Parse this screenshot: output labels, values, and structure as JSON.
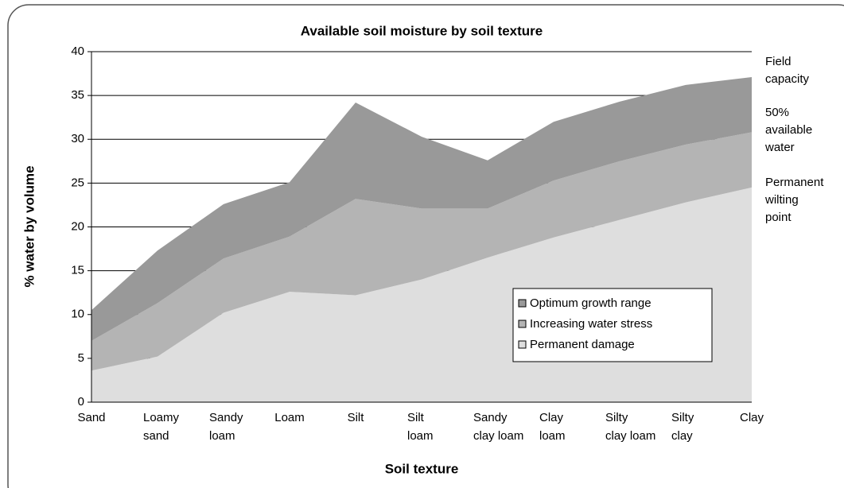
{
  "chart_data": {
    "type": "stacked_area",
    "title": "Available soil moisture by soil texture",
    "xlabel": "Soil texture",
    "ylabel": "% water by volume",
    "categories": [
      "Sand",
      "Loamy\nsand",
      "Sandy\nloam",
      "Loam",
      "Silt",
      "Silt\nloam",
      "Sandy\nclay loam",
      "Clay\nloam",
      "Silty\nclay loam",
      "Silty\nclay",
      "Clay"
    ],
    "series": [
      {
        "name": "Optimum growth range",
        "color": "#999999",
        "values": [
          3.5,
          6.0,
          6.2,
          6.2,
          11.0,
          8.2,
          5.5,
          6.7,
          6.8,
          6.8,
          6.3
        ]
      },
      {
        "name": "Increasing water stress",
        "color": "#b4b4b4",
        "values": [
          3.4,
          6.1,
          6.2,
          6.3,
          11.0,
          8.1,
          5.6,
          6.5,
          6.7,
          6.6,
          6.3
        ]
      },
      {
        "name": "Permanent damage",
        "color": "#dedede",
        "values": [
          3.6,
          5.2,
          10.2,
          12.6,
          12.2,
          14.0,
          16.5,
          18.8,
          20.8,
          22.8,
          24.5
        ]
      }
    ],
    "ylim": [
      0,
      40
    ],
    "yticks": [
      0,
      5,
      10,
      15,
      20,
      25,
      30,
      35,
      40
    ],
    "grid": true,
    "annotations": [
      "Field\ncapacity",
      "50%\navailable\nwater",
      "Permanent\nwilting\npoint"
    ]
  }
}
